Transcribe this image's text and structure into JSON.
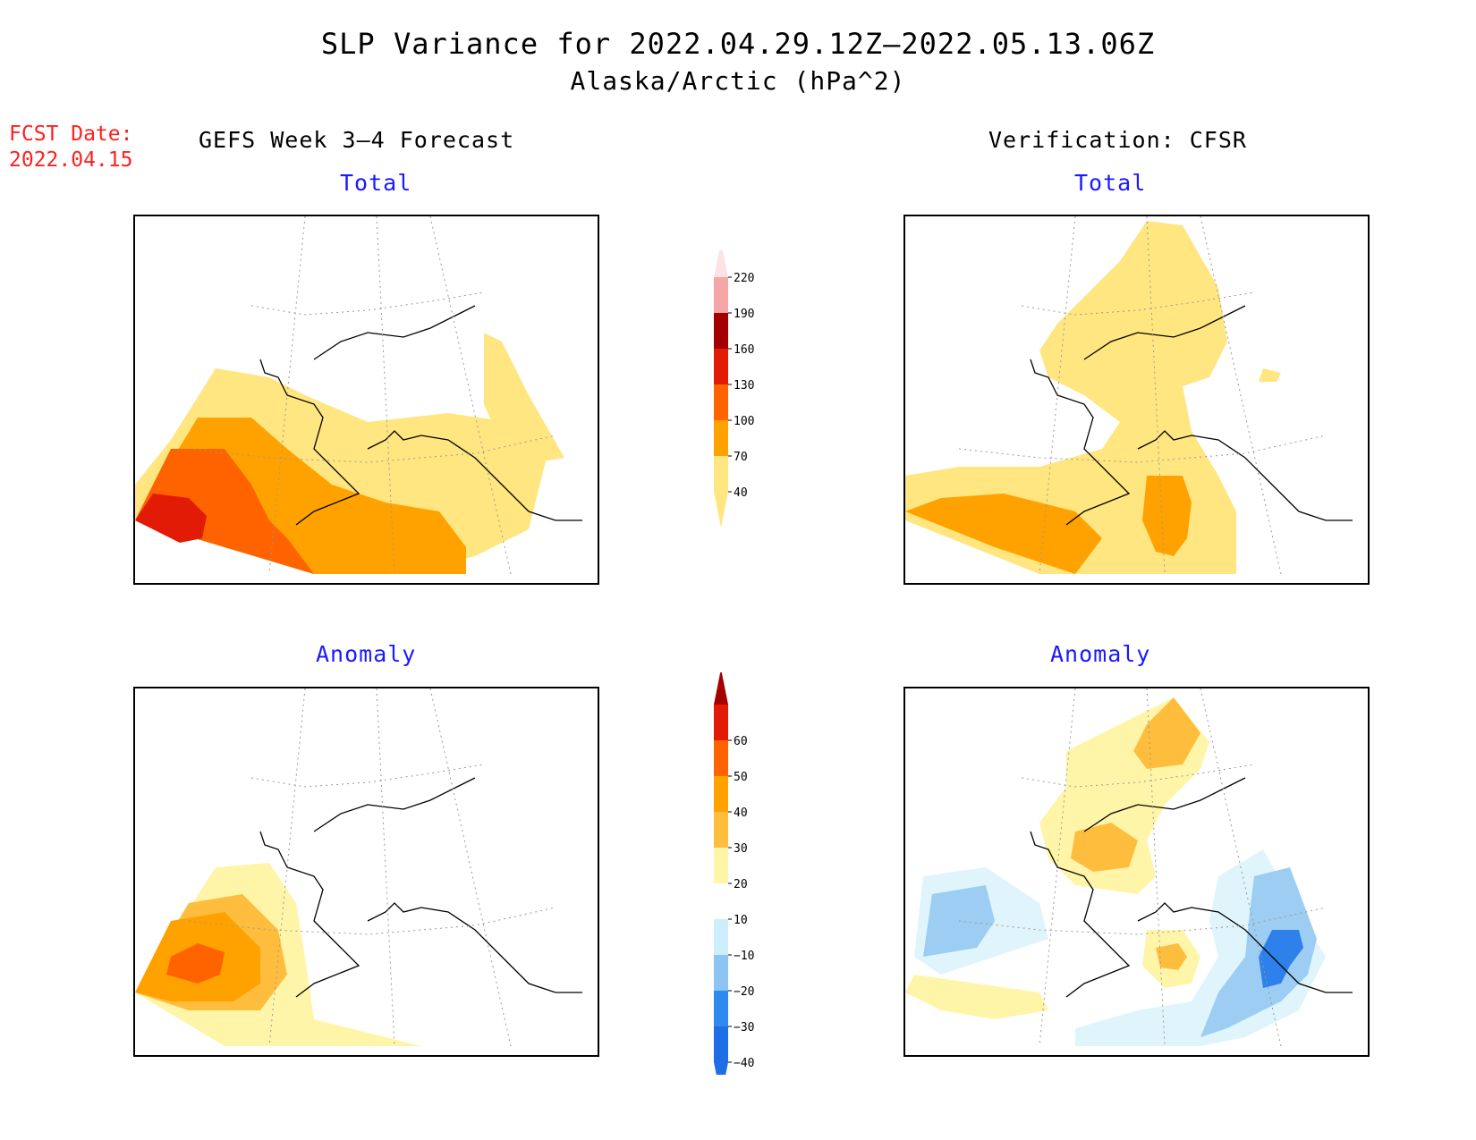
{
  "title": "SLP Variance for 2022.04.29.12Z–2022.05.13.06Z",
  "subtitle": "Alaska/Arctic (hPa^2)",
  "fcst_label": "FCST Date:",
  "fcst_date": "2022.04.15",
  "columns": {
    "left": "GEFS Week 3–4 Forecast",
    "right": "Verification: CFSR"
  },
  "panels": {
    "forecast_total_label": "Total",
    "forecast_anomaly_label": "Anomaly",
    "verification_total_label": "Total",
    "verification_anomaly_label": "Anomaly"
  },
  "colorbars": {
    "total": {
      "levels": [
        "40",
        "70",
        "100",
        "130",
        "160",
        "190",
        "220"
      ],
      "colors": [
        "#ffe680",
        "#ffa200",
        "#ff6300",
        "#e11b06",
        "#a50000",
        "#f5a6a6",
        "#fde3e3"
      ]
    },
    "anomaly": {
      "levels": [
        "−40",
        "−30",
        "−20",
        "−10",
        "10",
        "20",
        "30",
        "40",
        "50",
        "60"
      ],
      "colors": [
        "#1e6ee6",
        "#2e8af0",
        "#8cc4f2",
        "#cdeefc",
        "#ffffff",
        "#fff5a8",
        "#ffbd3e",
        "#ffa200",
        "#ff6300",
        "#e11b06",
        "#a50000"
      ]
    }
  },
  "palette": {
    "c40": "#ffe680",
    "c70": "#ffa200",
    "c100": "#ff6300",
    "c130": "#e11b06",
    "a10": "#fff5a8",
    "a20": "#ffbd3e",
    "a30": "#ffa200",
    "a40": "#ff6300",
    "n10": "#dff5fb",
    "n20": "#9dcdf2",
    "n30": "#2e80ea"
  }
}
